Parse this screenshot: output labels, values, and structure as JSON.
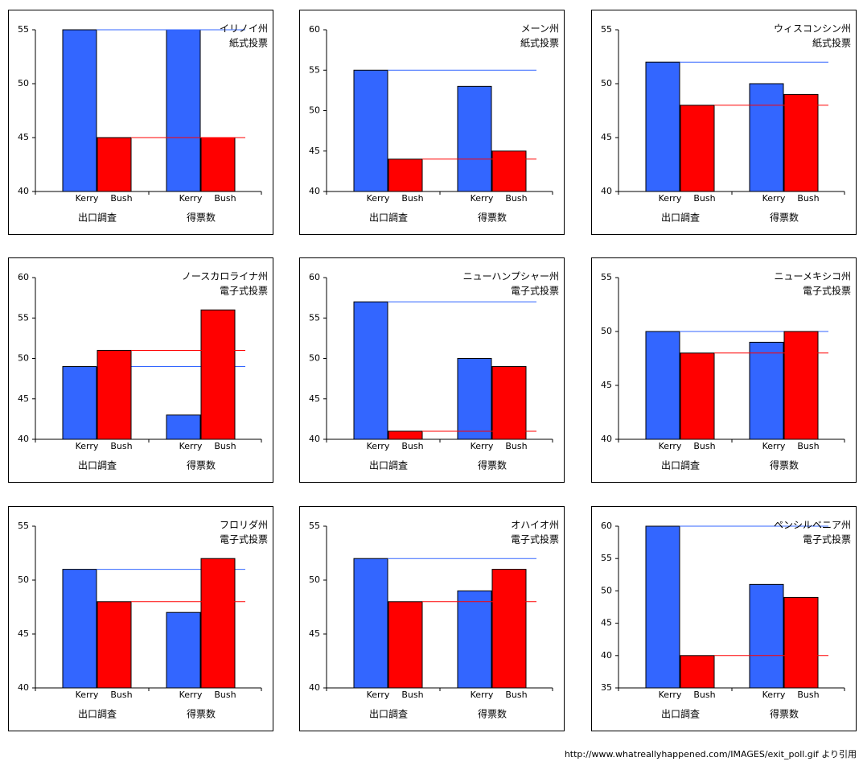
{
  "chart_data": [
    {
      "type": "bar",
      "title": "イリノイ州",
      "subtitle": "紙式投票",
      "categories": [
        "出口調査",
        "得票数"
      ],
      "ylim": [
        40,
        55
      ],
      "yticks": [
        40,
        45,
        50,
        55
      ],
      "series": [
        {
          "name": "Kerry",
          "color": "#3366ff",
          "values": [
            55,
            55
          ]
        },
        {
          "name": "Bush",
          "color": "#ff0000",
          "values": [
            45,
            45
          ]
        }
      ]
    },
    {
      "type": "bar",
      "title": "メーン州",
      "subtitle": "紙式投票",
      "categories": [
        "出口調査",
        "得票数"
      ],
      "ylim": [
        40,
        60
      ],
      "yticks": [
        40,
        45,
        50,
        55,
        60
      ],
      "series": [
        {
          "name": "Kerry",
          "color": "#3366ff",
          "values": [
            55,
            53
          ]
        },
        {
          "name": "Bush",
          "color": "#ff0000",
          "values": [
            44,
            45
          ]
        }
      ]
    },
    {
      "type": "bar",
      "title": "ウィスコンシン州",
      "subtitle": "紙式投票",
      "categories": [
        "出口調査",
        "得票数"
      ],
      "ylim": [
        40,
        55
      ],
      "yticks": [
        40,
        45,
        50,
        55
      ],
      "series": [
        {
          "name": "Kerry",
          "color": "#3366ff",
          "values": [
            52,
            50
          ]
        },
        {
          "name": "Bush",
          "color": "#ff0000",
          "values": [
            48,
            49
          ]
        }
      ]
    },
    {
      "type": "bar",
      "title": "ノースカロライナ州",
      "subtitle": "電子式投票",
      "categories": [
        "出口調査",
        "得票数"
      ],
      "ylim": [
        40,
        60
      ],
      "yticks": [
        40,
        45,
        50,
        55,
        60
      ],
      "series": [
        {
          "name": "Kerry",
          "color": "#3366ff",
          "values": [
            49,
            43
          ]
        },
        {
          "name": "Bush",
          "color": "#ff0000",
          "values": [
            51,
            56
          ]
        }
      ]
    },
    {
      "type": "bar",
      "title": "ニューハンプシャー州",
      "subtitle": "電子式投票",
      "categories": [
        "出口調査",
        "得票数"
      ],
      "ylim": [
        40,
        60
      ],
      "yticks": [
        40,
        45,
        50,
        55,
        60
      ],
      "series": [
        {
          "name": "Kerry",
          "color": "#3366ff",
          "values": [
            57,
            50
          ]
        },
        {
          "name": "Bush",
          "color": "#ff0000",
          "values": [
            41,
            49
          ]
        }
      ]
    },
    {
      "type": "bar",
      "title": "ニューメキシコ州",
      "subtitle": "電子式投票",
      "categories": [
        "出口調査",
        "得票数"
      ],
      "ylim": [
        40,
        55
      ],
      "yticks": [
        40,
        45,
        50,
        55
      ],
      "series": [
        {
          "name": "Kerry",
          "color": "#3366ff",
          "values": [
            50,
            49
          ]
        },
        {
          "name": "Bush",
          "color": "#ff0000",
          "values": [
            48,
            50
          ]
        }
      ]
    },
    {
      "type": "bar",
      "title": "フロリダ州",
      "subtitle": "電子式投票",
      "categories": [
        "出口調査",
        "得票数"
      ],
      "ylim": [
        40,
        55
      ],
      "yticks": [
        40,
        45,
        50,
        55
      ],
      "series": [
        {
          "name": "Kerry",
          "color": "#3366ff",
          "values": [
            51,
            47
          ]
        },
        {
          "name": "Bush",
          "color": "#ff0000",
          "values": [
            48,
            52
          ]
        }
      ]
    },
    {
      "type": "bar",
      "title": "オハイオ州",
      "subtitle": "電子式投票",
      "categories": [
        "出口調査",
        "得票数"
      ],
      "ylim": [
        40,
        55
      ],
      "yticks": [
        40,
        45,
        50,
        55
      ],
      "series": [
        {
          "name": "Kerry",
          "color": "#3366ff",
          "values": [
            52,
            49
          ]
        },
        {
          "name": "Bush",
          "color": "#ff0000",
          "values": [
            48,
            51
          ]
        }
      ]
    },
    {
      "type": "bar",
      "title": "ペンシルベニア州",
      "subtitle": "電子式投票",
      "categories": [
        "出口調査",
        "得票数"
      ],
      "ylim": [
        35,
        60
      ],
      "yticks": [
        35,
        40,
        45,
        50,
        55,
        60
      ],
      "series": [
        {
          "name": "Kerry",
          "color": "#3366ff",
          "values": [
            60,
            51
          ]
        },
        {
          "name": "Bush",
          "color": "#ff0000",
          "values": [
            40,
            49
          ]
        }
      ]
    }
  ],
  "source": "http://www.whatreallyhappened.com/IMAGES/exit_poll.gif より引用"
}
